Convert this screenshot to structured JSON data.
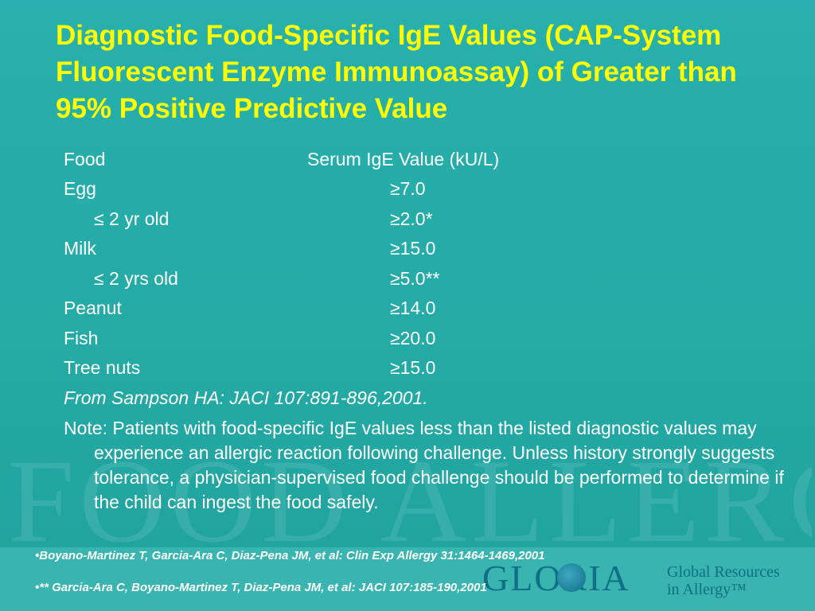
{
  "title": "Diagnostic Food-Specific IgE Values (CAP-System Fluorescent Enzyme Immunoassay) of Greater than 95% Positive Predictive Value",
  "table": {
    "header_food": "Food",
    "header_value": "Serum IgE Value (kU/L)",
    "rows": [
      {
        "food": "Egg",
        "value": "≥7.0"
      },
      {
        "food": "≤ 2 yr old",
        "value": "≥2.0*"
      },
      {
        "food": "Milk",
        "value": "≥15.0"
      },
      {
        "food": "≤ 2 yrs old",
        "value": "≥5.0**"
      },
      {
        "food": "Peanut",
        "value": "≥14.0"
      },
      {
        "food": "Fish",
        "value": "≥20.0"
      },
      {
        "food": "Tree nuts",
        "value": "≥15.0"
      }
    ]
  },
  "source": "From Sampson HA: JACI 107:891-896,2001.",
  "note": "Note: Patients with food-specific IgE values less than the listed diagnostic values may experience an allergic reaction following challenge. Unless history strongly suggests tolerance, a physician-supervised food challenge should be performed to determine if the child can ingest the food safely.",
  "watermark": "FOOD ALLERGY",
  "logo": {
    "name": "GLORIA",
    "tagline_1": "Global Resources",
    "tagline_2": "in Allergy™",
    "icon": "globe-icon"
  },
  "references": [
    "•Boyano-Martinez T, Garcia-Ara C, Diaz-Pena JM, et al: Clin Exp Allergy 31:1464-1469,2001",
    "•** Garcia-Ara C, Boyano-Martinez T, Diaz-Pena JM, et al: JACI 107:185-190,2001"
  ],
  "colors": {
    "background": "#25aaa6",
    "title": "#ffff00",
    "text": "#ffffff",
    "logo": "#0e6f85"
  }
}
